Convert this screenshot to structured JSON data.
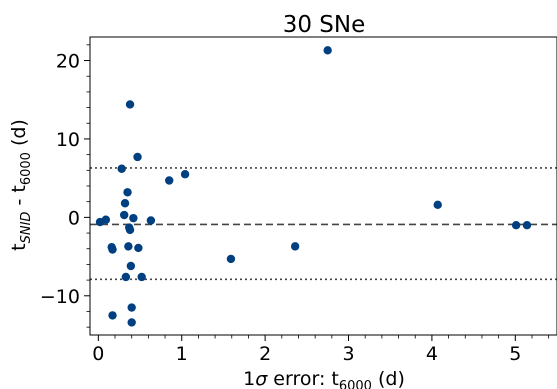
{
  "chart_data": {
    "type": "scatter",
    "title": "30 SNe",
    "xlabel": {
      "base": "1",
      "sigma": "σ",
      "mid": " error: t",
      "sub": "6000",
      "tail": " (d)"
    },
    "ylabel": {
      "t1": "t",
      "sub1": "SNID",
      "mid": " - t",
      "sub2": "6000",
      "tail": " (d)"
    },
    "xlim": [
      -0.1,
      5.5
    ],
    "ylim": [
      -15,
      23
    ],
    "xticks": [
      0,
      1,
      2,
      3,
      4,
      5
    ],
    "yticks": [
      -10,
      0,
      10,
      20
    ],
    "xtick_labels": [
      "0",
      "1",
      "2",
      "3",
      "4",
      "5"
    ],
    "ytick_labels": [
      "−10",
      "0",
      "10",
      "20"
    ],
    "grid": false,
    "marker_color": "#004080",
    "mean_line": -0.9,
    "band_lines": [
      6.3,
      -7.9
    ],
    "points": [
      {
        "x": 0.02,
        "y": -0.6
      },
      {
        "x": 0.09,
        "y": -0.3
      },
      {
        "x": 0.16,
        "y": -3.8
      },
      {
        "x": 0.17,
        "y": -4.1
      },
      {
        "x": 0.17,
        "y": -12.5
      },
      {
        "x": 0.28,
        "y": 6.2
      },
      {
        "x": 0.31,
        "y": 0.3
      },
      {
        "x": 0.32,
        "y": 1.8
      },
      {
        "x": 0.33,
        "y": -7.6
      },
      {
        "x": 0.35,
        "y": 3.2
      },
      {
        "x": 0.36,
        "y": -3.7
      },
      {
        "x": 0.37,
        "y": -1.3
      },
      {
        "x": 0.38,
        "y": -1.6
      },
      {
        "x": 0.38,
        "y": 14.4
      },
      {
        "x": 0.39,
        "y": -6.2
      },
      {
        "x": 0.4,
        "y": -11.5
      },
      {
        "x": 0.4,
        "y": -13.4
      },
      {
        "x": 0.42,
        "y": -0.1
      },
      {
        "x": 0.47,
        "y": 7.7
      },
      {
        "x": 0.48,
        "y": -3.9
      },
      {
        "x": 0.52,
        "y": -7.6
      },
      {
        "x": 0.63,
        "y": -0.4
      },
      {
        "x": 0.85,
        "y": 4.7
      },
      {
        "x": 1.04,
        "y": 5.5
      },
      {
        "x": 1.59,
        "y": -5.3
      },
      {
        "x": 2.36,
        "y": -3.7
      },
      {
        "x": 2.75,
        "y": 21.3
      },
      {
        "x": 4.07,
        "y": 1.6
      },
      {
        "x": 5.01,
        "y": -1.0
      },
      {
        "x": 5.14,
        "y": -1.0
      }
    ]
  }
}
